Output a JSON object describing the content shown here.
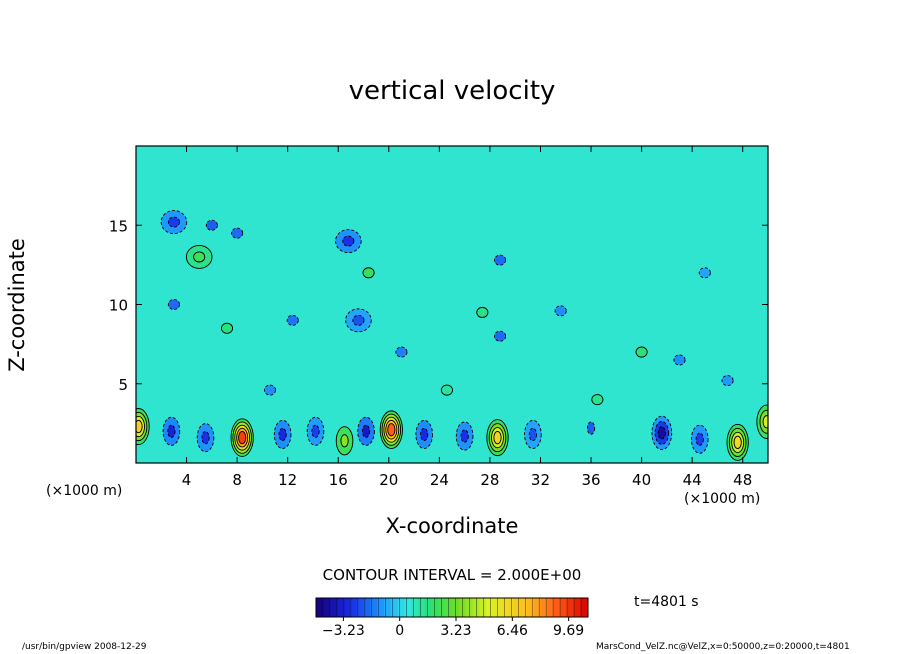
{
  "chart_data": {
    "type": "heatmap",
    "title": "vertical velocity",
    "xlabel": "X-coordinate",
    "ylabel": "Z-coordinate",
    "x_unit_label_left": "(×1000 m)",
    "x_unit_label_right": "(×1000 m)",
    "x_ticks": [
      4,
      8,
      12,
      16,
      20,
      24,
      28,
      32,
      36,
      40,
      44,
      48
    ],
    "y_ticks": [
      5,
      10,
      15
    ],
    "xlim": [
      0,
      50
    ],
    "ylim": [
      0,
      20
    ],
    "contour_interval_text": "CONTOUR INTERVAL = 2.000E+00",
    "contour_interval": 2.0,
    "colorbar": {
      "range": [
        -4.8,
        10.8
      ],
      "tick_values": [
        -3.23,
        0,
        3.23,
        6.46,
        9.69
      ],
      "tick_labels": [
        "−3.23",
        "0",
        "3.23",
        "6.46",
        "9.69"
      ]
    },
    "time_label": "t=4801 s",
    "features": [
      {
        "x": 0.2,
        "z": 2.3,
        "w": 6.5
      },
      {
        "x": 2.8,
        "z": 2.0,
        "w": -3.2
      },
      {
        "x": 5.5,
        "z": 1.6,
        "w": -2.8
      },
      {
        "x": 8.4,
        "z": 1.6,
        "w": 9.6
      },
      {
        "x": 11.6,
        "z": 1.8,
        "w": -3.0
      },
      {
        "x": 14.2,
        "z": 2.0,
        "w": -2.5
      },
      {
        "x": 16.5,
        "z": 1.4,
        "w": 3.8
      },
      {
        "x": 18.2,
        "z": 2.0,
        "w": -3.6
      },
      {
        "x": 20.2,
        "z": 2.1,
        "w": 9.0
      },
      {
        "x": 22.8,
        "z": 1.8,
        "w": -3.0
      },
      {
        "x": 26.0,
        "z": 1.7,
        "w": -2.8
      },
      {
        "x": 28.6,
        "z": 1.6,
        "w": 6.4
      },
      {
        "x": 31.4,
        "z": 1.8,
        "w": -2.2
      },
      {
        "x": 36.0,
        "z": 2.2,
        "w": -2.0
      },
      {
        "x": 41.6,
        "z": 1.9,
        "w": -4.2
      },
      {
        "x": 44.6,
        "z": 1.5,
        "w": -2.6
      },
      {
        "x": 47.6,
        "z": 1.3,
        "w": 6.2
      },
      {
        "x": 49.9,
        "z": 2.6,
        "w": 5.0
      },
      {
        "x": 3.0,
        "z": 15.2,
        "w": -2.6
      },
      {
        "x": 6.0,
        "z": 15.0,
        "w": -2.0
      },
      {
        "x": 5.0,
        "z": 13.0,
        "w": 2.2
      },
      {
        "x": 8.0,
        "z": 14.5,
        "w": -1.8
      },
      {
        "x": 3.0,
        "z": 10.0,
        "w": -1.8
      },
      {
        "x": 7.2,
        "z": 8.5,
        "w": 1.6
      },
      {
        "x": 12.4,
        "z": 9.0,
        "w": -1.6
      },
      {
        "x": 16.8,
        "z": 14.0,
        "w": -2.8
      },
      {
        "x": 17.6,
        "z": 9.0,
        "w": -2.2
      },
      {
        "x": 18.4,
        "z": 12.0,
        "w": 2.0
      },
      {
        "x": 21.0,
        "z": 7.0,
        "w": -1.4
      },
      {
        "x": 28.8,
        "z": 12.8,
        "w": -1.8
      },
      {
        "x": 27.4,
        "z": 9.5,
        "w": 1.4
      },
      {
        "x": 28.8,
        "z": 8.0,
        "w": -1.8
      },
      {
        "x": 33.6,
        "z": 9.6,
        "w": -1.2
      },
      {
        "x": 40.0,
        "z": 7.0,
        "w": 1.6
      },
      {
        "x": 43.0,
        "z": 6.5,
        "w": -1.2
      },
      {
        "x": 46.8,
        "z": 5.2,
        "w": -1.0
      },
      {
        "x": 45.0,
        "z": 12.0,
        "w": -0.8
      },
      {
        "x": 36.5,
        "z": 4.0,
        "w": 1.4
      },
      {
        "x": 10.6,
        "z": 4.6,
        "w": -1.2
      },
      {
        "x": 24.6,
        "z": 4.6,
        "w": 1.2
      }
    ]
  },
  "footer": {
    "left": "/usr/bin/gpview   2008-12-29",
    "right": "MarsCond_VelZ.nc@VelZ,x=0:50000,z=0:20000,t=4801"
  },
  "colors": {
    "frame": "#000000",
    "background": "#ffffff"
  }
}
